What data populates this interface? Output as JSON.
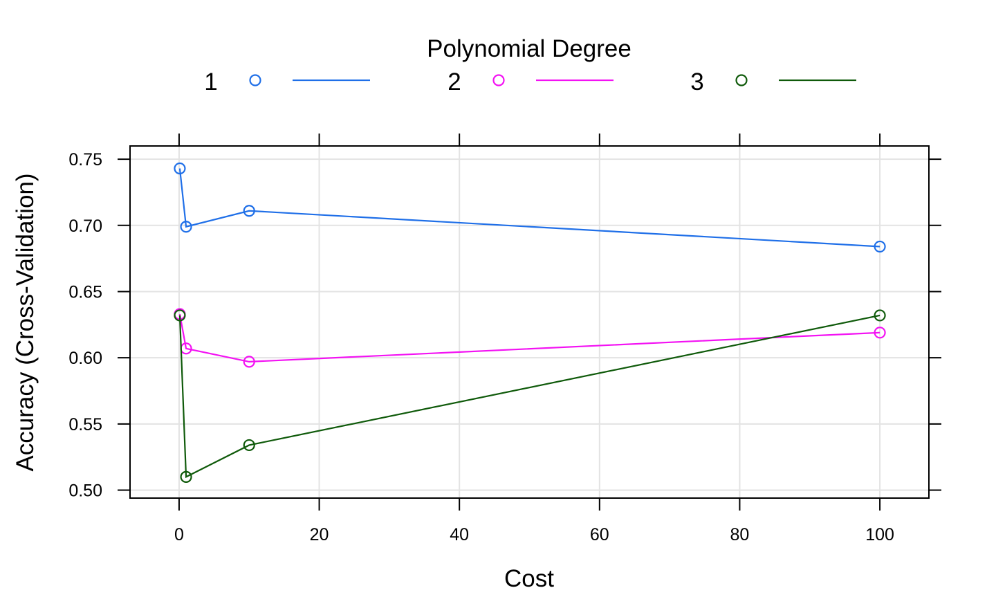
{
  "chart_data": {
    "type": "line",
    "title": "",
    "xlabel": "Cost",
    "ylabel": "Accuracy (Cross-Validation)",
    "xlim": [
      -7,
      107
    ],
    "ylim": [
      0.494,
      0.76
    ],
    "xticks": [
      0,
      20,
      40,
      60,
      80,
      100
    ],
    "xtick_labels": [
      "0",
      "20",
      "40",
      "60",
      "80",
      "100"
    ],
    "yticks": [
      0.5,
      0.55,
      0.6,
      0.65,
      0.7,
      0.75
    ],
    "ytick_labels": [
      "0.50",
      "0.55",
      "0.60",
      "0.65",
      "0.70",
      "0.75"
    ],
    "grid": true,
    "legend": {
      "title": "Polynomial Degree",
      "placement": "top",
      "entries": [
        "1",
        "2",
        "3"
      ]
    },
    "series": [
      {
        "name": "1",
        "color": "#1f6fe8",
        "x": [
          0.1,
          1,
          10,
          100
        ],
        "y": [
          0.743,
          0.699,
          0.711,
          0.684
        ]
      },
      {
        "name": "2",
        "color": "#f312f3",
        "x": [
          0.1,
          1,
          10,
          100
        ],
        "y": [
          0.633,
          0.607,
          0.597,
          0.619
        ]
      },
      {
        "name": "3",
        "color": "#0f5a0a",
        "x": [
          0.1,
          1,
          10,
          100
        ],
        "y": [
          0.632,
          0.51,
          0.534,
          0.632
        ]
      }
    ]
  }
}
